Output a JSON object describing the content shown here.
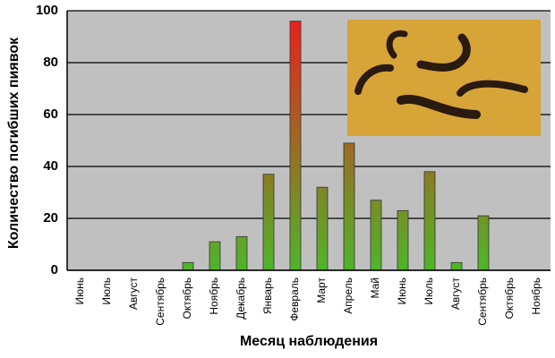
{
  "chart_data": {
    "type": "bar",
    "x_label": "Месяц наблюдения",
    "y_label": "Количество погибших пиявок",
    "categories": [
      "Июнь",
      "Июль",
      "Август",
      "Сентябрь",
      "Октябрь",
      "Ноябрь",
      "Декабрь",
      "Январь",
      "Февраль",
      "Март",
      "Апрель",
      "Май",
      "Июнь",
      "Июль",
      "Август",
      "Сентябрь",
      "Октябрь",
      "Ноябрь"
    ],
    "values": [
      0,
      0,
      0,
      0,
      3,
      11,
      13,
      37,
      96,
      32,
      49,
      27,
      23,
      38,
      3,
      21,
      0,
      0
    ],
    "color_low": "#4fb52a",
    "color_high": "#ee1c1c",
    "ylim": [
      0,
      100
    ],
    "yticks": [
      0,
      20,
      40,
      60,
      80,
      100
    ],
    "grid": true
  }
}
